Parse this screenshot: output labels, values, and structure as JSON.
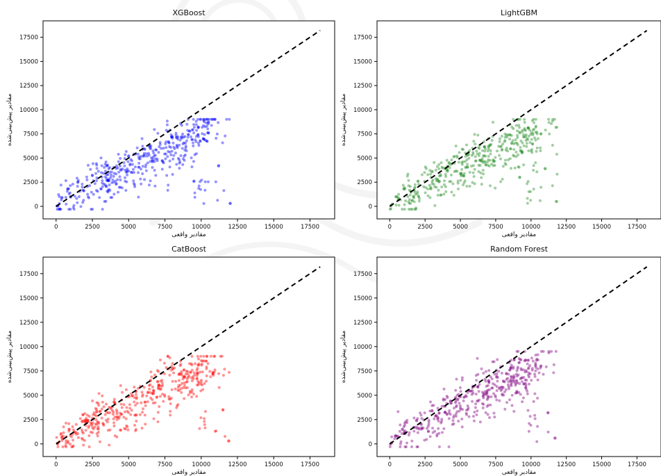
{
  "figure": {
    "background": "#ffffff",
    "layout": "2x2"
  },
  "chart_data": [
    {
      "type": "scatter",
      "title": "XGBoost",
      "xlabel": "مقادیر واقعی",
      "ylabel": "مقادیر پیش‌بینی‌شده",
      "xlim": [
        -900,
        19200
      ],
      "ylim": [
        -1300,
        19200
      ],
      "xticks": [
        0,
        2500,
        5000,
        7500,
        10000,
        12500,
        15000,
        17500
      ],
      "yticks": [
        0,
        2500,
        5000,
        7500,
        10000,
        12500,
        15000,
        17500
      ],
      "color": "#0000ff",
      "reference_line": {
        "x": [
          0,
          18200
        ],
        "y": [
          0,
          18200
        ],
        "style": "dashed",
        "color": "#000000"
      },
      "cloud": {
        "x_range": [
          0,
          12000
        ],
        "y_range": [
          -300,
          9000
        ],
        "cap": 9000,
        "points": [
          [
            120,
            50
          ],
          [
            400,
            900
          ],
          [
            800,
            1800
          ],
          [
            1500,
            2500
          ],
          [
            2500,
            3200
          ],
          [
            3500,
            4200
          ],
          [
            5000,
            5200
          ],
          [
            6500,
            6000
          ],
          [
            8000,
            7200
          ],
          [
            9800,
            8200
          ],
          [
            10500,
            7600
          ],
          [
            11200,
            4200
          ],
          [
            12000,
            300
          ],
          [
            9500,
            2600
          ],
          [
            10500,
            8700
          ]
        ]
      },
      "grid": false
    },
    {
      "type": "scatter",
      "title": "LightGBM",
      "xlabel": "مقادیر واقعی",
      "ylabel": "مقادیر پیش‌بینی‌شده",
      "xlim": [
        -900,
        19200
      ],
      "ylim": [
        -1300,
        19200
      ],
      "xticks": [
        0,
        2500,
        5000,
        7500,
        10000,
        12500,
        15000,
        17500
      ],
      "yticks": [
        0,
        2500,
        5000,
        7500,
        10000,
        12500,
        15000,
        17500
      ],
      "color": "#228b22",
      "reference_line": {
        "x": [
          0,
          18200
        ],
        "y": [
          0,
          18200
        ],
        "style": "dashed",
        "color": "#000000"
      },
      "cloud": {
        "x_range": [
          0,
          12000
        ],
        "y_range": [
          -300,
          9000
        ],
        "cap": 9000,
        "points": [
          [
            100,
            100
          ],
          [
            500,
            1000
          ],
          [
            1000,
            1800
          ],
          [
            2000,
            2600
          ],
          [
            3000,
            3600
          ],
          [
            4200,
            4500
          ],
          [
            5500,
            5300
          ],
          [
            7000,
            6200
          ],
          [
            8500,
            7400
          ],
          [
            9800,
            8100
          ],
          [
            10700,
            7500
          ],
          [
            11000,
            3900
          ],
          [
            11800,
            500
          ],
          [
            9200,
            3000
          ]
        ]
      },
      "grid": false
    },
    {
      "type": "scatter",
      "title": "CatBoost",
      "xlabel": "مقادیر واقعی",
      "ylabel": "مقادیر پیش‌بینی‌شده",
      "xlim": [
        -900,
        19200
      ],
      "ylim": [
        -1300,
        19200
      ],
      "xticks": [
        0,
        2500,
        5000,
        7500,
        10000,
        12500,
        15000,
        17500
      ],
      "yticks": [
        0,
        2500,
        5000,
        7500,
        10000,
        12500,
        15000,
        17500
      ],
      "color": "#ff0000",
      "reference_line": {
        "x": [
          0,
          18200
        ],
        "y": [
          0,
          18200
        ],
        "style": "dashed",
        "color": "#000000"
      },
      "cloud": {
        "x_range": [
          0,
          12000
        ],
        "y_range": [
          -300,
          9000
        ],
        "cap": 9000,
        "points": [
          [
            100,
            60
          ],
          [
            400,
            700
          ],
          [
            900,
            1500
          ],
          [
            1800,
            2300
          ],
          [
            2800,
            3300
          ],
          [
            4000,
            4300
          ],
          [
            5500,
            5400
          ],
          [
            7000,
            6400
          ],
          [
            8500,
            7200
          ],
          [
            9800,
            8100
          ],
          [
            10800,
            7200
          ],
          [
            11500,
            3500
          ],
          [
            11900,
            300
          ]
        ]
      },
      "grid": false
    },
    {
      "type": "scatter",
      "title": "Random Forest",
      "xlabel": "مقادیر واقعی",
      "ylabel": "مقادیر پیش‌بینی‌شده",
      "xlim": [
        -900,
        19200
      ],
      "ylim": [
        -1300,
        19200
      ],
      "xticks": [
        0,
        2500,
        5000,
        7500,
        10000,
        12500,
        15000,
        17500
      ],
      "yticks": [
        0,
        2500,
        5000,
        7500,
        10000,
        12500,
        15000,
        17500
      ],
      "color": "#800080",
      "reference_line": {
        "x": [
          0,
          18200
        ],
        "y": [
          0,
          18200
        ],
        "style": "dashed",
        "color": "#000000"
      },
      "cloud": {
        "x_range": [
          0,
          12000
        ],
        "y_range": [
          -300,
          9500
        ],
        "cap": 9500,
        "points": [
          [
            120,
            90
          ],
          [
            400,
            800
          ],
          [
            900,
            1500
          ],
          [
            1900,
            2400
          ],
          [
            3000,
            3400
          ],
          [
            4300,
            4400
          ],
          [
            5600,
            5500
          ],
          [
            7000,
            6500
          ],
          [
            8500,
            7600
          ],
          [
            9800,
            8600
          ],
          [
            10700,
            8000
          ],
          [
            11200,
            3200
          ],
          [
            11700,
            600
          ]
        ]
      },
      "grid": false
    }
  ]
}
